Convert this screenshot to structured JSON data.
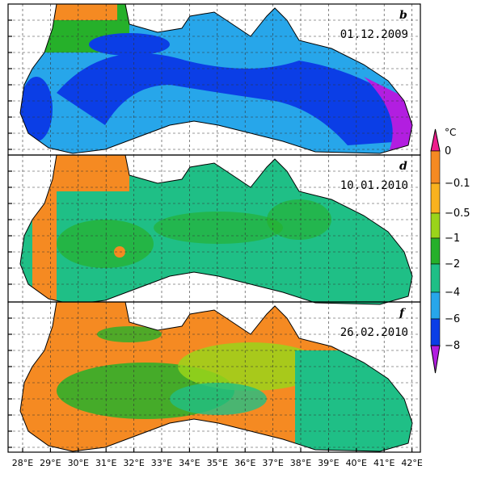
{
  "panels": [
    {
      "label": "b",
      "date": "01.12.2009"
    },
    {
      "label": "d",
      "date": "10.01.2010"
    },
    {
      "label": "f",
      "date": "26.02.2010"
    }
  ],
  "x_axis_labels": [
    "28°E",
    "29°E",
    "30°E",
    "31°E",
    "32°E",
    "33°E",
    "34°E",
    "35°E",
    "36°E",
    "37°E",
    "38°E",
    "39°E",
    "40°E",
    "41°E",
    "42°E"
  ],
  "colorbar": {
    "unit": "°C",
    "labels": [
      "0",
      "−0.1",
      "−0.5",
      "−1",
      "−2",
      "−4",
      "−6",
      "−8"
    ],
    "colors": [
      "#ee1e8c",
      "#f58a22",
      "#f9b21e",
      "#9ad41a",
      "#26b02a",
      "#1fbf86",
      "#27a6ea",
      "#0b3ee6",
      "#b21ee0"
    ]
  }
}
